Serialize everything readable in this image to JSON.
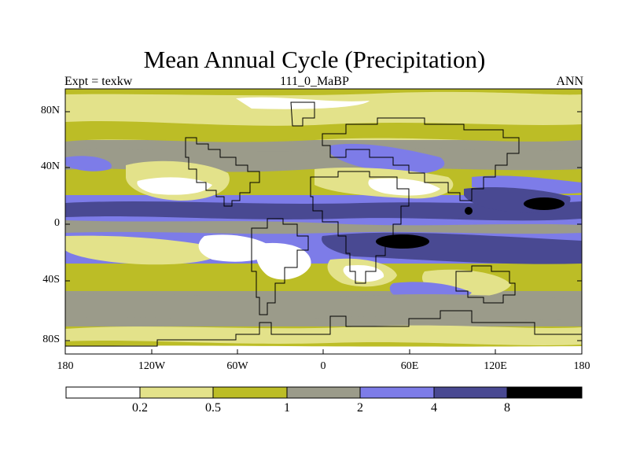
{
  "title": "Mean Annual Cycle (Precipitation)",
  "subtitle_left": "Expt = texkw",
  "subtitle_center": "111_0_MaBP",
  "subtitle_right": "ANN",
  "y_ticks": [
    "80N",
    "40N",
    "0",
    "40S",
    "80S"
  ],
  "x_ticks": [
    "180",
    "120W",
    "60W",
    "0",
    "60E",
    "120E",
    "180"
  ],
  "colorbar": {
    "levels": [
      "0.2",
      "0.5",
      "1",
      "2",
      "4",
      "8"
    ],
    "colors": [
      "#ffffff",
      "#e3e28a",
      "#bcbd26",
      "#9b9b8a",
      "#7d7ce8",
      "#494992",
      "#000000"
    ]
  },
  "chart_data": {
    "type": "heatmap",
    "variable": "Precipitation",
    "experiment": "texkw",
    "period": "111_0_MaBP",
    "season": "ANN",
    "xlim": [
      -180,
      180
    ],
    "ylim": [
      -90,
      90
    ],
    "x_tick_values": [
      -180,
      -120,
      -60,
      0,
      60,
      120,
      180
    ],
    "y_tick_values": [
      80,
      40,
      0,
      -40,
      -80
    ],
    "contour_levels": [
      0.2,
      0.5,
      1,
      2,
      4,
      8
    ],
    "zonal_bands": [
      {
        "lat_range": [
          80,
          90
        ],
        "class": "0.5-1"
      },
      {
        "lat_range": [
          60,
          80
        ],
        "class": "0.2-1"
      },
      {
        "lat_range": [
          40,
          60
        ],
        "class": "1-2"
      },
      {
        "lat_range": [
          20,
          40
        ],
        "class": "0.2-2"
      },
      {
        "lat_range": [
          5,
          20
        ],
        "class": "4-8"
      },
      {
        "lat_range": [
          -5,
          5
        ],
        "class": "2-4"
      },
      {
        "lat_range": [
          -25,
          -5
        ],
        "class": "4-8"
      },
      {
        "lat_range": [
          -45,
          -25
        ],
        "class": "0.2-2"
      },
      {
        "lat_range": [
          -70,
          -45
        ],
        "class": "1-2"
      },
      {
        "lat_range": [
          -90,
          -70
        ],
        "class": "0.5-1"
      }
    ]
  }
}
